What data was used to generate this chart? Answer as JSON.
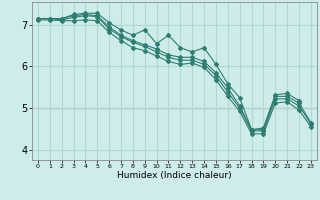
{
  "xlabel": "Humidex (Indice chaleur)",
  "bg_color": "#ceecea",
  "grid_color": "#b0d8d4",
  "line_color": "#2e7d72",
  "red_line_color": "#d08080",
  "xlim": [
    -0.5,
    23.5
  ],
  "ylim": [
    3.75,
    7.55
  ],
  "yticks": [
    4,
    5,
    6,
    7
  ],
  "xticks": [
    0,
    1,
    2,
    3,
    4,
    5,
    6,
    7,
    8,
    9,
    10,
    11,
    12,
    13,
    14,
    15,
    16,
    17,
    18,
    19,
    20,
    21,
    22,
    23
  ],
  "series": [
    [
      7.15,
      7.15,
      7.15,
      7.25,
      7.28,
      7.28,
      7.05,
      6.88,
      6.75,
      6.88,
      6.55,
      6.75,
      6.45,
      6.35,
      6.45,
      6.05,
      5.58,
      5.25,
      4.48,
      4.52,
      5.32,
      5.35,
      5.18,
      null
    ],
    [
      7.15,
      7.15,
      7.15,
      7.22,
      7.25,
      7.22,
      6.95,
      6.75,
      6.62,
      6.52,
      6.42,
      6.28,
      6.22,
      6.22,
      6.12,
      5.85,
      5.48,
      5.05,
      4.48,
      4.48,
      5.28,
      5.28,
      5.12,
      4.65
    ],
    [
      7.15,
      7.15,
      7.12,
      7.18,
      7.22,
      7.2,
      6.9,
      6.72,
      6.58,
      6.48,
      6.35,
      6.22,
      6.15,
      6.15,
      6.05,
      5.78,
      5.38,
      5.0,
      4.45,
      4.45,
      5.22,
      5.22,
      5.05,
      4.62
    ],
    [
      7.12,
      7.12,
      7.1,
      7.1,
      7.12,
      7.1,
      6.82,
      6.62,
      6.45,
      6.38,
      6.25,
      6.12,
      6.05,
      6.08,
      5.98,
      5.68,
      5.28,
      4.92,
      4.38,
      4.38,
      5.12,
      5.15,
      4.95,
      4.55
    ]
  ]
}
